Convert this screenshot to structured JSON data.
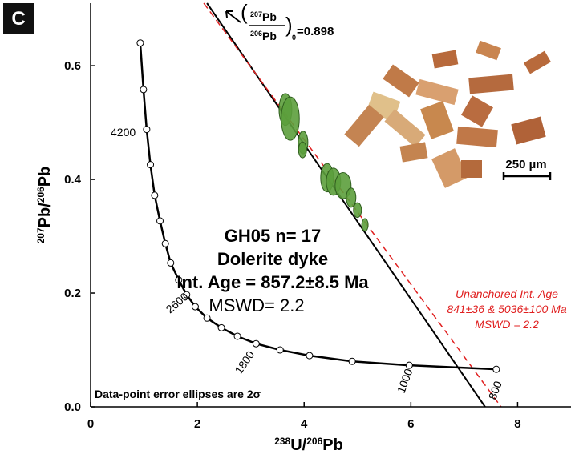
{
  "chart_data": {
    "type": "scatter",
    "panel": "C",
    "xlabel": [
      "238",
      "U/",
      "206",
      "Pb"
    ],
    "ylabel": [
      "207",
      "Pb/",
      "206",
      "Pb"
    ],
    "xlim": [
      0,
      9
    ],
    "ylim": [
      0,
      0.71
    ],
    "xticks": [
      0,
      2,
      4,
      6,
      8
    ],
    "yticks": [
      {
        "value": 0,
        "label": "0.0"
      },
      0.2,
      0.4,
      0.6
    ],
    "concordia": {
      "color": "#000000",
      "x": [
        0.93,
        0.99,
        1.05,
        1.12,
        1.2,
        1.3,
        1.4,
        1.5,
        1.65,
        1.8,
        1.96,
        2.18,
        2.45,
        2.75,
        3.1,
        3.55,
        4.1,
        4.9,
        5.97,
        7.6
      ],
      "y": [
        0.64,
        0.558,
        0.488,
        0.426,
        0.372,
        0.327,
        0.287,
        0.253,
        0.223,
        0.197,
        0.176,
        0.156,
        0.139,
        0.124,
        0.111,
        0.1,
        0.09,
        0.08,
        0.073,
        0.066
      ],
      "age_labels": [
        "4200",
        "2600",
        "1800",
        "1000",
        "800"
      ]
    },
    "discordia": [
      {
        "color": "#000000",
        "x": [
          2.18,
          7.39
        ],
        "y": [
          0.71,
          0
        ]
      },
      {
        "color": "#e02020",
        "dashed": true,
        "x": [
          2.12,
          7.69
        ],
        "y": [
          0.71,
          0
        ]
      }
    ],
    "ellipses": {
      "color": "#5c9e3c",
      "x": [
        3.65,
        3.74,
        3.98,
        3.97,
        4.43,
        4.55,
        4.73,
        4.88,
        5.0,
        5.14
      ],
      "y": [
        0.523,
        0.507,
        0.465,
        0.452,
        0.403,
        0.396,
        0.389,
        0.368,
        0.346,
        0.32
      ],
      "rx": [
        0.12,
        0.17,
        0.09,
        0.075,
        0.12,
        0.135,
        0.15,
        0.09,
        0.075,
        0.06
      ],
      "ry": [
        0.028,
        0.038,
        0.02,
        0.014,
        0.025,
        0.024,
        0.023,
        0.017,
        0.013,
        0.011
      ]
    },
    "intercept_label": {
      "num_mass": "207",
      "num": "Pb",
      "den_mass": "206",
      "den": "Pb",
      "sub": "0",
      "value": "=0.898"
    },
    "main_text": [
      "GH05 n= 17",
      "Dolerite dyke",
      "Int. Age = 857.2±8.5 Ma",
      "MSWD= 2.2"
    ],
    "red_text": [
      "Unanchored Int. Age",
      "841±36 & 5036±100 Ma",
      "MSWD = 2.2"
    ],
    "note": "Data-point error ellipses are 2σ",
    "scale_bar": "250 µm"
  }
}
